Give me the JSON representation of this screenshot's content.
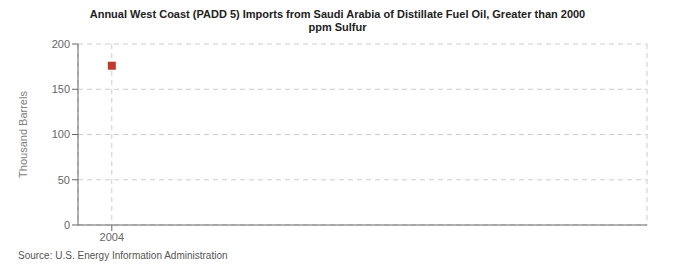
{
  "chart_data": {
    "type": "scatter",
    "title": "Annual West Coast (PADD 5) Imports from Saudi Arabia of Distillate Fuel Oil, Greater than 2000\nppm Sulfur",
    "ylabel": "Thousand Barrels",
    "annotations": [
      "Source: U.S. Energy Information Administration"
    ],
    "x": [
      2004
    ],
    "values": [
      176
    ],
    "color": "#c0392b",
    "marker": "square",
    "xlim": [
      2003.4,
      2013.5
    ],
    "ylim": [
      0,
      200
    ],
    "xticks": [
      2004
    ],
    "yticks": [
      0,
      50,
      100,
      150,
      200
    ],
    "grid": true
  }
}
